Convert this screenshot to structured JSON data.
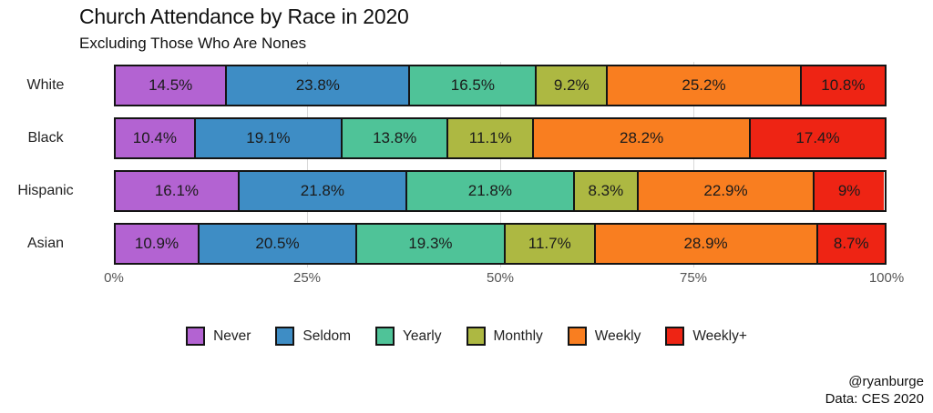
{
  "title": "Church Attendance by Race in 2020",
  "subtitle": "Excluding Those Who Are Nones",
  "attribution": {
    "line1": "@ryanburge",
    "line2": "Data: CES 2020"
  },
  "chart_data": {
    "type": "bar",
    "orientation": "horizontal-stacked",
    "title": "Church Attendance by Race in 2020",
    "subtitle": "Excluding Those Who Are Nones",
    "categories": [
      "White",
      "Black",
      "Hispanic",
      "Asian"
    ],
    "series": [
      {
        "name": "Never",
        "color": "#b363d2",
        "values": [
          14.5,
          10.4,
          16.1,
          10.9
        ]
      },
      {
        "name": "Seldom",
        "color": "#3e8dc5",
        "values": [
          23.8,
          19.1,
          21.8,
          20.5
        ]
      },
      {
        "name": "Yearly",
        "color": "#4fc398",
        "values": [
          16.5,
          13.8,
          21.8,
          19.3
        ]
      },
      {
        "name": "Monthly",
        "color": "#adb842",
        "values": [
          9.2,
          11.1,
          8.3,
          11.7
        ]
      },
      {
        "name": "Weekly",
        "color": "#f97e20",
        "values": [
          25.2,
          28.2,
          22.9,
          28.9
        ]
      },
      {
        "name": "Weekly+",
        "color": "#ee2414",
        "values": [
          10.8,
          17.4,
          9.0,
          8.7
        ]
      }
    ],
    "value_labels": [
      [
        "14.5%",
        "23.8%",
        "16.5%",
        "9.2%",
        "25.2%",
        "10.8%"
      ],
      [
        "10.4%",
        "19.1%",
        "13.8%",
        "11.1%",
        "28.2%",
        "17.4%"
      ],
      [
        "16.1%",
        "21.8%",
        "21.8%",
        "8.3%",
        "22.9%",
        "9%"
      ],
      [
        "10.9%",
        "20.5%",
        "19.3%",
        "11.7%",
        "28.9%",
        "8.7%"
      ]
    ],
    "x_ticks": [
      "0%",
      "25%",
      "50%",
      "75%",
      "100%"
    ],
    "x_tick_positions": [
      0,
      25,
      50,
      75,
      100
    ],
    "gridline_positions": [
      25,
      50,
      75
    ],
    "xlim": [
      0,
      100
    ],
    "grid": "faint-vertical",
    "legend_position": "bottom",
    "legend_entries": [
      "Never",
      "Seldom",
      "Yearly",
      "Monthly",
      "Weekly",
      "Weekly+"
    ]
  }
}
